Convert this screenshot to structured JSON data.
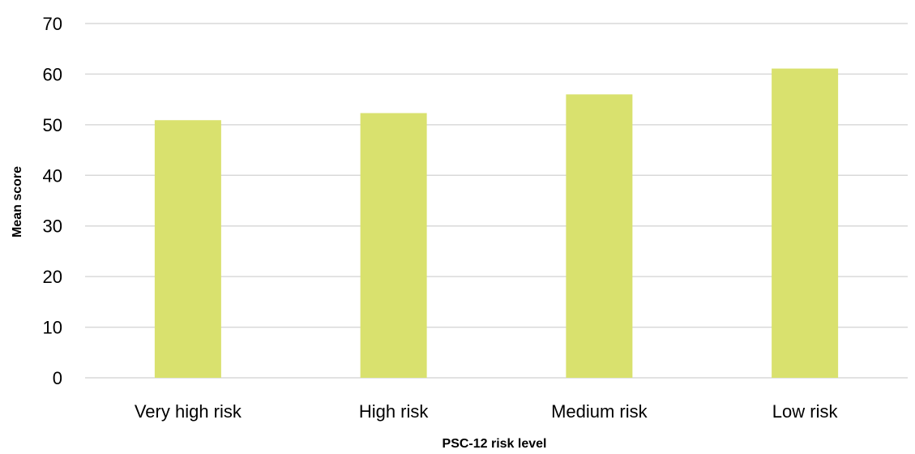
{
  "chart_data": {
    "type": "bar",
    "categories": [
      "Very high risk",
      "High risk",
      "Medium risk",
      "Low risk"
    ],
    "values": [
      50.9,
      52.3,
      56.0,
      61.1
    ],
    "title": "",
    "xlabel": "PSC-12 risk level",
    "ylabel": "Mean score",
    "ylim": [
      0,
      70
    ],
    "yticks": [
      0,
      10,
      20,
      30,
      40,
      50,
      60,
      70
    ],
    "grid": true,
    "legend": "none",
    "bar_color": "#d9e16e"
  }
}
